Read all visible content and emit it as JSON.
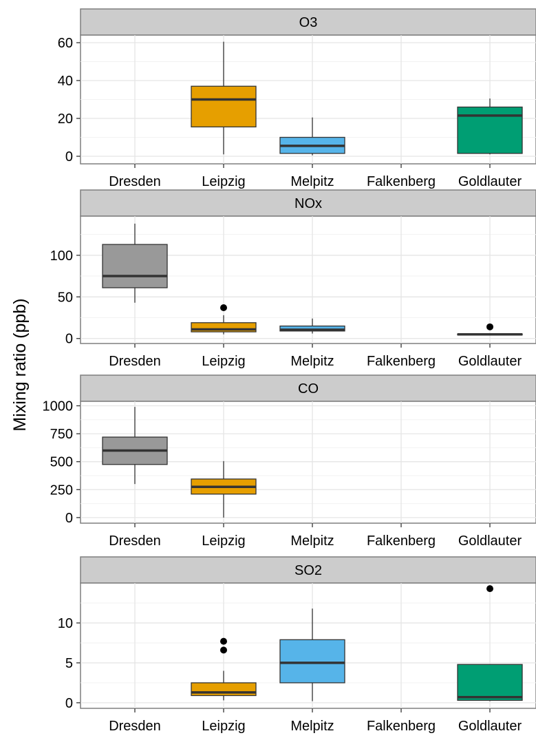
{
  "ylabel": "Mixing ratio (ppb)",
  "colors": {
    "Dresden": "#999999",
    "Leipzig": "#E69F00",
    "Melpitz": "#56B4E9",
    "Falkenberg": "#009E73",
    "Goldlauter": "#009E73"
  },
  "chart_data": [
    {
      "type": "boxplot",
      "title": "O3",
      "categories": [
        "Dresden",
        "Leipzig",
        "Melpitz",
        "Falkenberg",
        "Goldlauter"
      ],
      "ylim": [
        -4,
        64
      ],
      "yticks": [
        0,
        20,
        40,
        60
      ],
      "grid": true,
      "boxes": [
        {
          "category": "Leipzig",
          "min": 1,
          "q1": 15.5,
          "median": 30,
          "q3": 37,
          "max": 60.5,
          "outliers": []
        },
        {
          "category": "Melpitz",
          "min": 0.5,
          "q1": 1.5,
          "median": 5.5,
          "q3": 10,
          "max": 20.5,
          "outliers": []
        },
        {
          "category": "Goldlauter",
          "min": 1,
          "q1": 1.5,
          "median": 21.5,
          "q3": 26,
          "max": 30.5,
          "outliers": []
        }
      ]
    },
    {
      "type": "boxplot",
      "title": "NOx",
      "categories": [
        "Dresden",
        "Leipzig",
        "Melpitz",
        "Falkenberg",
        "Goldlauter"
      ],
      "ylim": [
        -6,
        147
      ],
      "yticks": [
        0,
        50,
        100
      ],
      "grid": true,
      "boxes": [
        {
          "category": "Dresden",
          "min": 43,
          "q1": 61,
          "median": 75,
          "q3": 113,
          "max": 138,
          "outliers": []
        },
        {
          "category": "Leipzig",
          "min": 5,
          "q1": 8,
          "median": 11,
          "q3": 19,
          "max": 28,
          "outliers": [
            37
          ]
        },
        {
          "category": "Melpitz",
          "min": 6,
          "q1": 9,
          "median": 10.5,
          "q3": 15,
          "max": 24,
          "outliers": []
        },
        {
          "category": "Goldlauter",
          "min": 4,
          "q1": 4.5,
          "median": 5,
          "q3": 5.5,
          "max": 6,
          "outliers": [
            14
          ]
        }
      ]
    },
    {
      "type": "boxplot",
      "title": "CO",
      "categories": [
        "Dresden",
        "Leipzig",
        "Melpitz",
        "Falkenberg",
        "Goldlauter"
      ],
      "ylim": [
        -50,
        1040
      ],
      "yticks": [
        0,
        250,
        500,
        750,
        1000
      ],
      "grid": true,
      "boxes": [
        {
          "category": "Dresden",
          "min": 300,
          "q1": 475,
          "median": 600,
          "q3": 720,
          "max": 990,
          "outliers": []
        },
        {
          "category": "Leipzig",
          "min": 0,
          "q1": 210,
          "median": 275,
          "q3": 345,
          "max": 505,
          "outliers": []
        }
      ]
    },
    {
      "type": "boxplot",
      "title": "SO2",
      "categories": [
        "Dresden",
        "Leipzig",
        "Melpitz",
        "Falkenberg",
        "Goldlauter"
      ],
      "ylim": [
        -0.7,
        15
      ],
      "yticks": [
        0,
        5,
        10
      ],
      "grid": true,
      "boxes": [
        {
          "category": "Leipzig",
          "min": 0.3,
          "q1": 0.9,
          "median": 1.3,
          "q3": 2.5,
          "max": 4.0,
          "outliers": [
            6.6,
            7.7
          ]
        },
        {
          "category": "Melpitz",
          "min": 0.2,
          "q1": 2.5,
          "median": 5.0,
          "q3": 7.9,
          "max": 11.8,
          "outliers": []
        },
        {
          "category": "Goldlauter",
          "min": 0.2,
          "q1": 0.3,
          "median": 0.7,
          "q3": 4.8,
          "max": 4.8,
          "outliers": [
            14.3
          ]
        }
      ]
    }
  ]
}
